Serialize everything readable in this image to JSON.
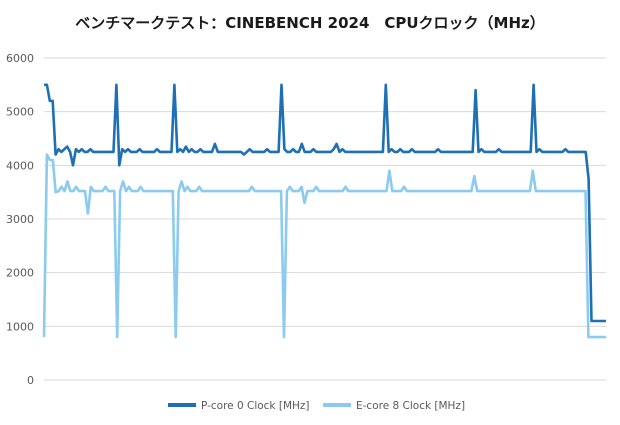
{
  "chart_data": {
    "type": "line",
    "title": "ベンチマークテスト：CINEBENCH 2024　CPUクロック（MHz）",
    "xlabel": "",
    "ylabel": "",
    "ylim": [
      0,
      6000
    ],
    "yticks": [
      "0",
      "1000",
      "2000",
      "3000",
      "4000",
      "5000",
      "6000"
    ],
    "grid": true,
    "legend_position": "bottom",
    "series": [
      {
        "name": "P-core 0 Clock [MHz]",
        "color": "#1f6fb5",
        "baseline": 4250,
        "values": [
          5500,
          5500,
          5200,
          5200,
          4200,
          4300,
          4250,
          4300,
          4350,
          4250,
          4000,
          4300,
          4250,
          4300,
          4250,
          4250,
          4300,
          4250,
          4250,
          4250,
          4250,
          4250,
          4250,
          4250,
          4250,
          5500,
          4000,
          4300,
          4250,
          4300,
          4250,
          4250,
          4250,
          4300,
          4250,
          4250,
          4250,
          4250,
          4250,
          4300,
          4250,
          4250,
          4250,
          4250,
          4250,
          5500,
          4250,
          4300,
          4250,
          4350,
          4250,
          4300,
          4250,
          4250,
          4300,
          4250,
          4250,
          4250,
          4250,
          4400,
          4250,
          4250,
          4250,
          4250,
          4250,
          4250,
          4250,
          4250,
          4250,
          4200,
          4250,
          4300,
          4250,
          4250,
          4250,
          4250,
          4250,
          4300,
          4250,
          4250,
          4250,
          4250,
          5500,
          4300,
          4250,
          4250,
          4300,
          4250,
          4250,
          4400,
          4250,
          4250,
          4250,
          4300,
          4250,
          4250,
          4250,
          4250,
          4250,
          4250,
          4300,
          4400,
          4250,
          4300,
          4250,
          4250,
          4250,
          4250,
          4250,
          4250,
          4250,
          4250,
          4250,
          4250,
          4250,
          4250,
          4250,
          4250,
          5500,
          4250,
          4300,
          4250,
          4250,
          4300,
          4250,
          4250,
          4250,
          4300,
          4250,
          4250,
          4250,
          4250,
          4250,
          4250,
          4250,
          4250,
          4300,
          4250,
          4250,
          4250,
          4250,
          4250,
          4250,
          4250,
          4250,
          4250,
          4250,
          4250,
          4250,
          5400,
          4250,
          4300,
          4250,
          4250,
          4250,
          4250,
          4250,
          4300,
          4250,
          4250,
          4250,
          4250,
          4250,
          4250,
          4250,
          4250,
          4250,
          4250,
          4250,
          5500,
          4250,
          4300,
          4250,
          4250,
          4250,
          4250,
          4250,
          4250,
          4250,
          4250,
          4300,
          4250,
          4250,
          4250,
          4250,
          4250,
          4250,
          4250,
          3750,
          1100,
          1100,
          1100,
          1100,
          1100,
          1100
        ]
      },
      {
        "name": "E-core 8 Clock [MHz]",
        "color": "#8ccbf0",
        "baseline": 3520,
        "values": [
          800,
          4200,
          4100,
          4100,
          3500,
          3520,
          3600,
          3520,
          3700,
          3520,
          3520,
          3600,
          3520,
          3520,
          3520,
          3100,
          3600,
          3520,
          3520,
          3520,
          3520,
          3600,
          3520,
          3520,
          3520,
          800,
          3520,
          3700,
          3520,
          3600,
          3520,
          3520,
          3520,
          3600,
          3520,
          3520,
          3520,
          3520,
          3520,
          3520,
          3520,
          3520,
          3520,
          3520,
          3520,
          800,
          3520,
          3700,
          3520,
          3600,
          3520,
          3520,
          3520,
          3600,
          3520,
          3520,
          3520,
          3520,
          3520,
          3520,
          3520,
          3520,
          3520,
          3520,
          3520,
          3520,
          3520,
          3520,
          3520,
          3520,
          3520,
          3600,
          3520,
          3520,
          3520,
          3520,
          3520,
          3520,
          3520,
          3520,
          3520,
          3520,
          800,
          3520,
          3600,
          3520,
          3520,
          3520,
          3600,
          3300,
          3520,
          3520,
          3520,
          3600,
          3520,
          3520,
          3520,
          3520,
          3520,
          3520,
          3520,
          3520,
          3520,
          3600,
          3520,
          3520,
          3520,
          3520,
          3520,
          3520,
          3520,
          3520,
          3520,
          3520,
          3520,
          3520,
          3520,
          3520,
          3900,
          3520,
          3520,
          3520,
          3520,
          3600,
          3520,
          3520,
          3520,
          3520,
          3520,
          3520,
          3520,
          3520,
          3520,
          3520,
          3520,
          3520,
          3520,
          3520,
          3520,
          3520,
          3520,
          3520,
          3520,
          3520,
          3520,
          3520,
          3520,
          3800,
          3520,
          3520,
          3520,
          3520,
          3520,
          3520,
          3520,
          3520,
          3520,
          3520,
          3520,
          3520,
          3520,
          3520,
          3520,
          3520,
          3520,
          3520,
          3520,
          3900,
          3520,
          3520,
          3520,
          3520,
          3520,
          3520,
          3520,
          3520,
          3520,
          3520,
          3520,
          3520,
          3520,
          3520,
          3520,
          3520,
          3520,
          3520,
          800,
          800,
          800,
          800,
          800,
          800,
          800
        ]
      }
    ]
  }
}
